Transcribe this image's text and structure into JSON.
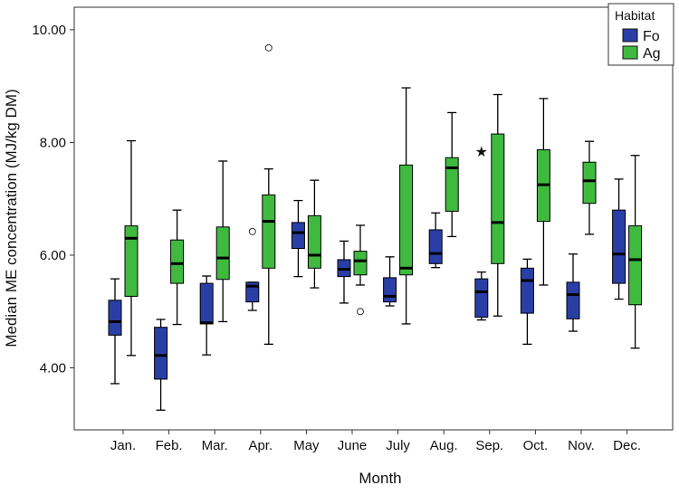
{
  "chart_data": {
    "type": "box",
    "xlabel": "Month",
    "ylabel": "Median ME concentration (MJ/kg DM)",
    "ylim": [
      2.9,
      10.4
    ],
    "y_ticks": [
      "4.00",
      "6.00",
      "8.00",
      "10.00"
    ],
    "y_tick_values": [
      4,
      6,
      8,
      10
    ],
    "categories": [
      "Jan.",
      "Feb.",
      "Mar.",
      "Apr.",
      "May",
      "June",
      "July",
      "Aug.",
      "Sep.",
      "Oct.",
      "Nov.",
      "Dec."
    ],
    "grid": false,
    "legend": {
      "title": "Habitat",
      "position": "top-right"
    },
    "series": [
      {
        "name": "Fo",
        "color": "#2a3fa6",
        "boxes": [
          {
            "min": 3.72,
            "q1": 4.58,
            "median": 4.82,
            "q3": 5.2,
            "max": 5.58,
            "outliers": [],
            "extremes": []
          },
          {
            "min": 3.25,
            "q1": 3.8,
            "median": 4.22,
            "q3": 4.72,
            "max": 4.86,
            "outliers": [],
            "extremes": []
          },
          {
            "min": 4.23,
            "q1": 4.78,
            "median": 4.8,
            "q3": 5.5,
            "max": 5.63,
            "outliers": [],
            "extremes": []
          },
          {
            "min": 5.02,
            "q1": 5.17,
            "median": 5.45,
            "q3": 5.52,
            "max": 5.52,
            "outliers": [
              6.42
            ],
            "extremes": []
          },
          {
            "min": 5.62,
            "q1": 6.12,
            "median": 6.4,
            "q3": 6.58,
            "max": 6.97,
            "outliers": [],
            "extremes": []
          },
          {
            "min": 5.15,
            "q1": 5.62,
            "median": 5.75,
            "q3": 5.92,
            "max": 6.25,
            "outliers": [],
            "extremes": []
          },
          {
            "min": 5.1,
            "q1": 5.17,
            "median": 5.27,
            "q3": 5.6,
            "max": 5.97,
            "outliers": [],
            "extremes": []
          },
          {
            "min": 5.78,
            "q1": 5.85,
            "median": 6.03,
            "q3": 6.45,
            "max": 6.75,
            "outliers": [],
            "extremes": []
          },
          {
            "min": 4.85,
            "q1": 4.9,
            "median": 5.35,
            "q3": 5.58,
            "max": 5.7,
            "outliers": [],
            "extremes": [
              7.85
            ]
          },
          {
            "min": 4.42,
            "q1": 4.97,
            "median": 5.55,
            "q3": 5.77,
            "max": 5.93,
            "outliers": [],
            "extremes": []
          },
          {
            "min": 4.65,
            "q1": 4.87,
            "median": 5.3,
            "q3": 5.52,
            "max": 6.02,
            "outliers": [],
            "extremes": []
          },
          {
            "min": 5.22,
            "q1": 5.5,
            "median": 6.02,
            "q3": 6.8,
            "max": 7.35,
            "outliers": [],
            "extremes": []
          }
        ]
      },
      {
        "name": "Ag",
        "color": "#3fba3f",
        "boxes": [
          {
            "min": 4.22,
            "q1": 5.27,
            "median": 6.3,
            "q3": 6.52,
            "max": 8.03,
            "outliers": [],
            "extremes": []
          },
          {
            "min": 4.77,
            "q1": 5.5,
            "median": 5.85,
            "q3": 6.27,
            "max": 6.8,
            "outliers": [],
            "extremes": []
          },
          {
            "min": 4.82,
            "q1": 5.57,
            "median": 5.95,
            "q3": 6.5,
            "max": 7.67,
            "outliers": [],
            "extremes": []
          },
          {
            "min": 4.42,
            "q1": 5.77,
            "median": 6.6,
            "q3": 7.07,
            "max": 7.53,
            "outliers": [
              9.68
            ],
            "extremes": []
          },
          {
            "min": 5.42,
            "q1": 5.77,
            "median": 6.0,
            "q3": 6.7,
            "max": 7.33,
            "outliers": [],
            "extremes": []
          },
          {
            "min": 5.47,
            "q1": 5.65,
            "median": 5.9,
            "q3": 6.07,
            "max": 6.53,
            "outliers": [
              5.0
            ],
            "extremes": []
          },
          {
            "min": 4.78,
            "q1": 5.65,
            "median": 5.77,
            "q3": 7.6,
            "max": 8.97,
            "outliers": [],
            "extremes": []
          },
          {
            "min": 6.33,
            "q1": 6.78,
            "median": 7.55,
            "q3": 7.73,
            "max": 8.53,
            "outliers": [],
            "extremes": []
          },
          {
            "min": 4.92,
            "q1": 5.85,
            "median": 6.58,
            "q3": 8.15,
            "max": 8.85,
            "outliers": [],
            "extremes": []
          },
          {
            "min": 5.47,
            "q1": 6.6,
            "median": 7.25,
            "q3": 7.87,
            "max": 8.78,
            "outliers": [],
            "extremes": []
          },
          {
            "min": 6.37,
            "q1": 6.92,
            "median": 7.32,
            "q3": 7.65,
            "max": 8.02,
            "outliers": [],
            "extremes": []
          },
          {
            "min": 4.35,
            "q1": 5.12,
            "median": 5.92,
            "q3": 6.52,
            "max": 7.77,
            "outliers": [],
            "extremes": []
          }
        ]
      }
    ]
  }
}
